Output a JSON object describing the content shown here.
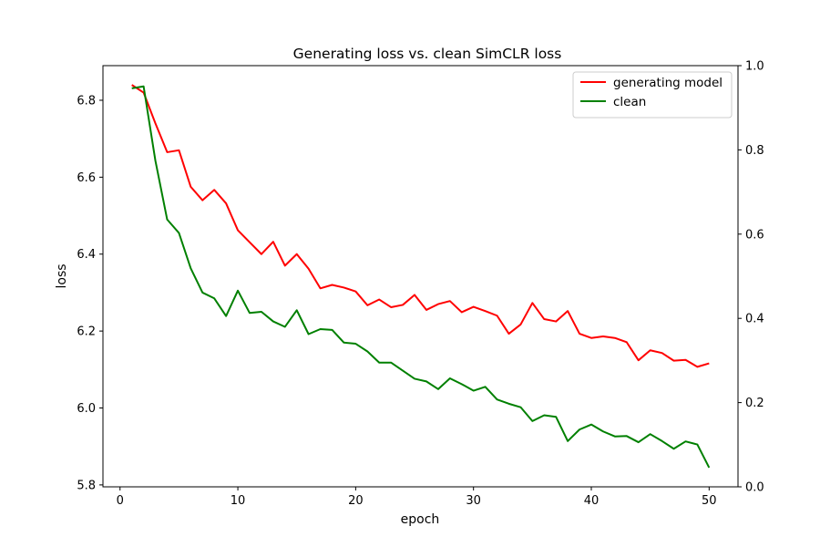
{
  "chart_data": {
    "type": "line",
    "title": "Generating loss vs. clean SimCLR loss",
    "xlabel": "epoch",
    "ylabel": "loss",
    "xlim": [
      -1.45,
      52.45
    ],
    "ylim": [
      5.795,
      6.89
    ],
    "y2lim": [
      0,
      1
    ],
    "xticks": [
      0,
      10,
      20,
      30,
      40,
      50
    ],
    "yticks": [
      5.8,
      6.0,
      6.2,
      6.4,
      6.6,
      6.8
    ],
    "y2ticks": [
      0.0,
      0.2,
      0.4,
      0.6,
      0.8,
      1.0
    ],
    "grid": false,
    "legend_position": "top-right",
    "x": [
      1,
      2,
      3,
      4,
      5,
      6,
      7,
      8,
      9,
      10,
      11,
      12,
      13,
      14,
      15,
      16,
      17,
      18,
      19,
      20,
      21,
      22,
      23,
      24,
      25,
      26,
      27,
      28,
      29,
      30,
      31,
      32,
      33,
      34,
      35,
      36,
      37,
      38,
      39,
      40,
      41,
      42,
      43,
      44,
      45,
      46,
      47,
      48,
      49,
      50
    ],
    "series": [
      {
        "name": "generating model",
        "color": "#ff0000",
        "values": [
          6.84,
          6.82,
          6.74,
          6.665,
          6.67,
          6.575,
          6.54,
          6.567,
          6.532,
          6.462,
          6.431,
          6.4,
          6.432,
          6.37,
          6.4,
          6.362,
          6.311,
          6.32,
          6.313,
          6.303,
          6.267,
          6.282,
          6.262,
          6.268,
          6.294,
          6.255,
          6.27,
          6.278,
          6.249,
          6.263,
          6.252,
          6.24,
          6.193,
          6.217,
          6.273,
          6.231,
          6.225,
          6.252,
          6.193,
          6.182,
          6.186,
          6.182,
          6.171,
          6.124,
          6.15,
          6.143,
          6.123,
          6.125,
          6.107,
          6.116
        ]
      },
      {
        "name": "clean",
        "color": "#008000",
        "values": [
          6.831,
          6.836,
          6.643,
          6.49,
          6.455,
          6.363,
          6.3,
          6.285,
          6.239,
          6.305,
          6.247,
          6.25,
          6.225,
          6.211,
          6.254,
          6.192,
          6.205,
          6.203,
          6.17,
          6.167,
          6.147,
          6.118,
          6.118,
          6.097,
          6.076,
          6.069,
          6.049,
          6.077,
          6.062,
          6.045,
          6.055,
          6.022,
          6.011,
          6.002,
          5.966,
          5.981,
          5.977,
          5.914,
          5.944,
          5.957,
          5.939,
          5.926,
          5.927,
          5.911,
          5.932,
          5.914,
          5.894,
          5.913,
          5.905,
          5.845
        ]
      }
    ]
  }
}
